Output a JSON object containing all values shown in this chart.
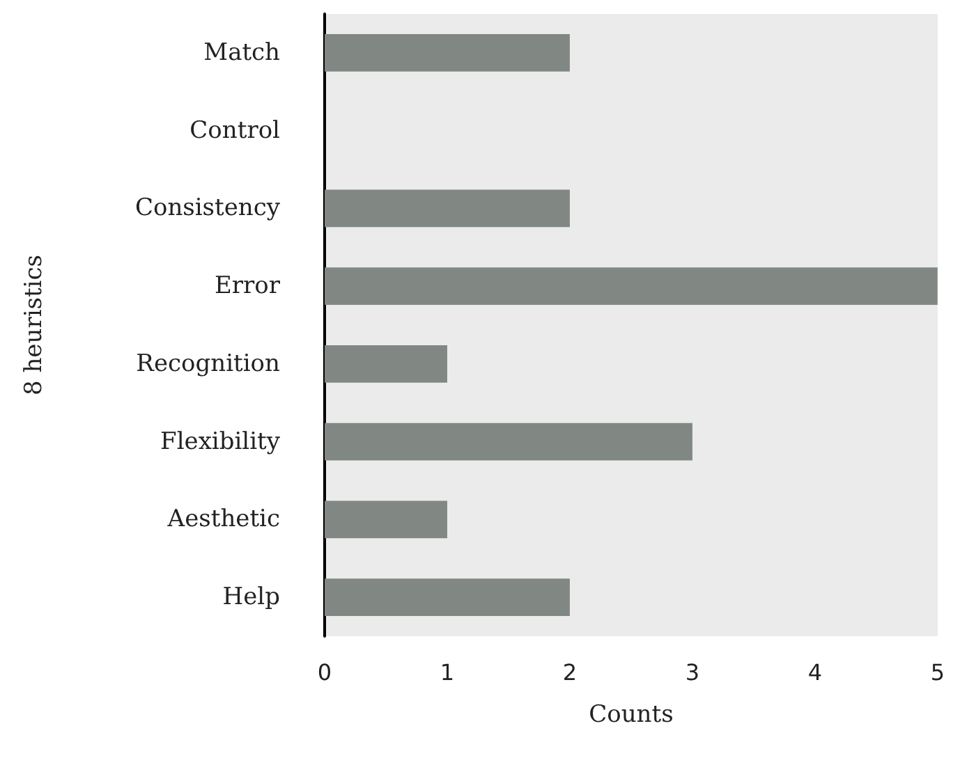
{
  "chart_data": {
    "type": "bar",
    "orientation": "horizontal",
    "xlabel": "Counts",
    "ylabel": "8 heuristics",
    "categories": [
      "Match",
      "Control",
      "Consistency",
      "Error",
      "Recognition",
      "Flexibility",
      "Aesthetic",
      "Help"
    ],
    "values": [
      2,
      0,
      2,
      5,
      1,
      3,
      1,
      2
    ],
    "color": "#818884",
    "xlim": [
      0,
      5
    ],
    "xticks": [
      0,
      1,
      2,
      3,
      4,
      5
    ],
    "grid": false
  }
}
